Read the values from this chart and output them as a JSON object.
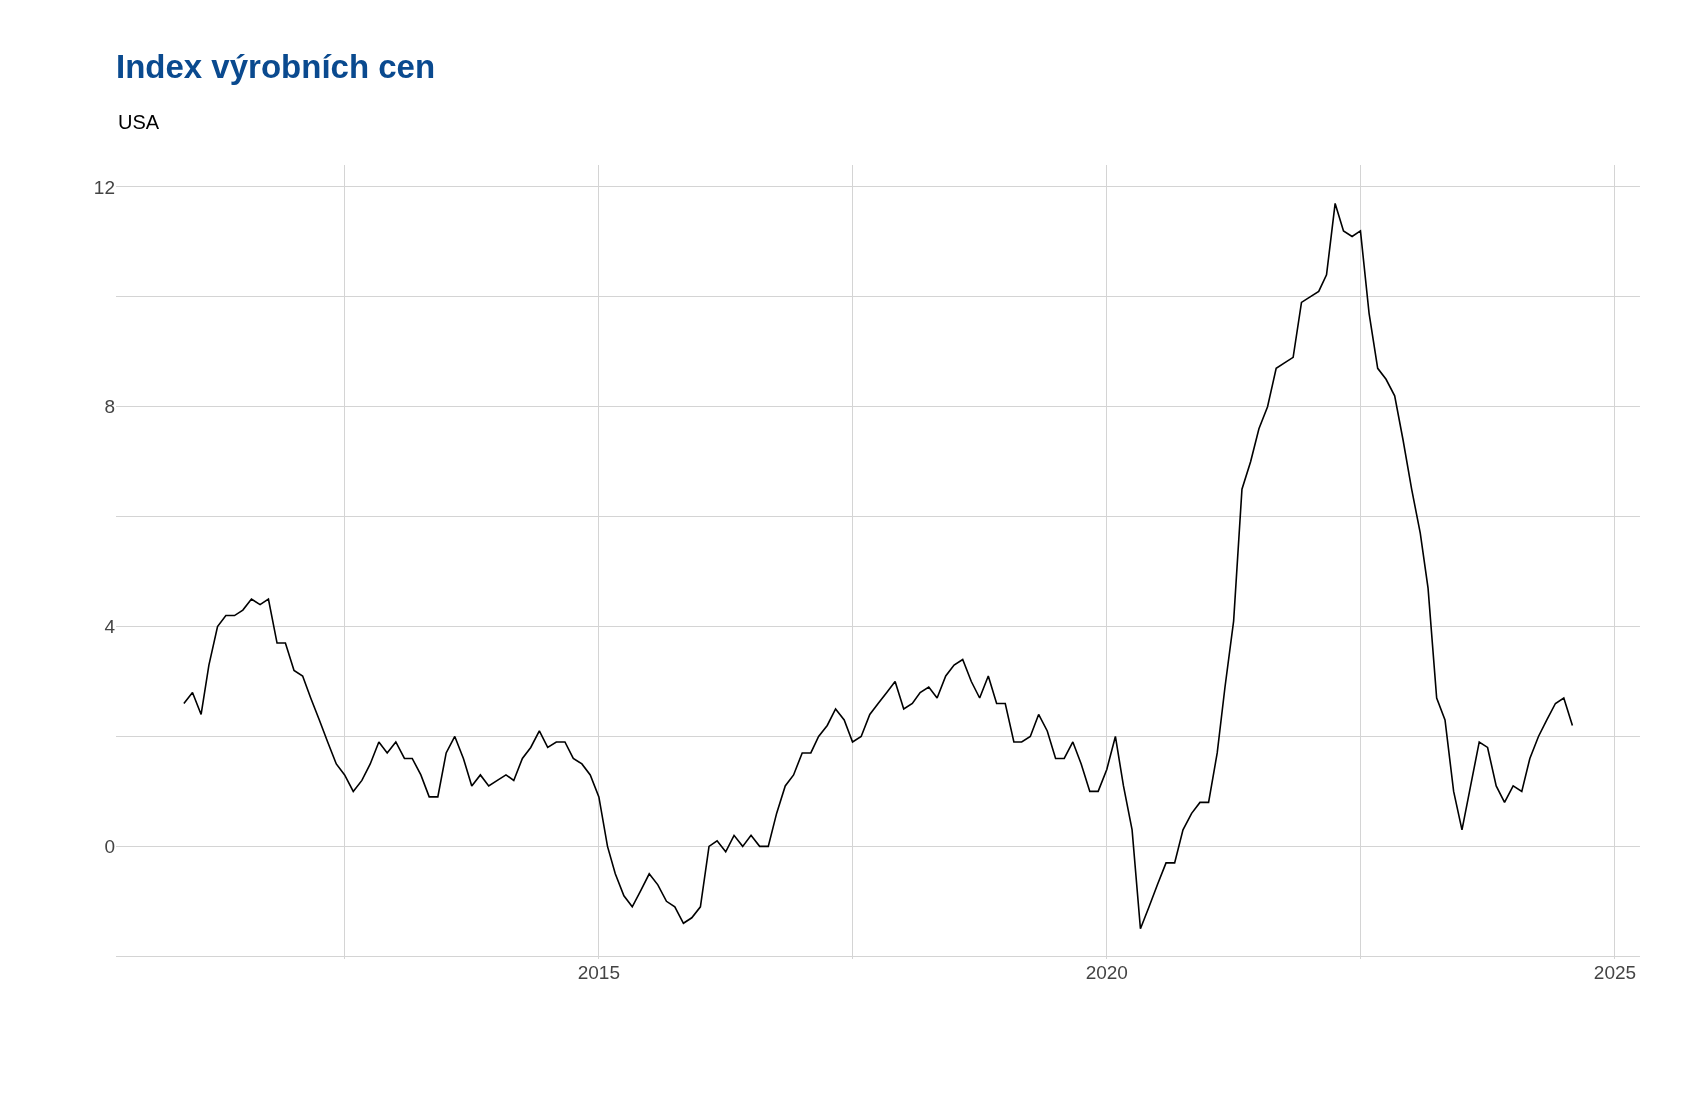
{
  "chart_data": {
    "type": "line",
    "title": "Index výrobních cen",
    "subtitle": "USA",
    "x": [
      "2010-12",
      "2011-01",
      "2011-02",
      "2011-03",
      "2011-04",
      "2011-05",
      "2011-06",
      "2011-07",
      "2011-08",
      "2011-09",
      "2011-10",
      "2011-11",
      "2011-12",
      "2012-01",
      "2012-02",
      "2012-03",
      "2012-04",
      "2012-05",
      "2012-06",
      "2012-07",
      "2012-08",
      "2012-09",
      "2012-10",
      "2012-11",
      "2012-12",
      "2013-01",
      "2013-02",
      "2013-03",
      "2013-04",
      "2013-05",
      "2013-06",
      "2013-07",
      "2013-08",
      "2013-09",
      "2013-10",
      "2013-11",
      "2013-12",
      "2014-01",
      "2014-02",
      "2014-03",
      "2014-04",
      "2014-05",
      "2014-06",
      "2014-07",
      "2014-08",
      "2014-09",
      "2014-10",
      "2014-11",
      "2014-12",
      "2015-01",
      "2015-02",
      "2015-03",
      "2015-04",
      "2015-05",
      "2015-06",
      "2015-07",
      "2015-08",
      "2015-09",
      "2015-10",
      "2015-11",
      "2015-12",
      "2016-01",
      "2016-02",
      "2016-03",
      "2016-04",
      "2016-05",
      "2016-06",
      "2016-07",
      "2016-08",
      "2016-09",
      "2016-10",
      "2016-11",
      "2016-12",
      "2017-01",
      "2017-02",
      "2017-03",
      "2017-04",
      "2017-05",
      "2017-06",
      "2017-07",
      "2017-08",
      "2017-09",
      "2017-10",
      "2017-11",
      "2017-12",
      "2018-01",
      "2018-02",
      "2018-03",
      "2018-04",
      "2018-05",
      "2018-06",
      "2018-07",
      "2018-08",
      "2018-09",
      "2018-10",
      "2018-11",
      "2018-12",
      "2019-01",
      "2019-02",
      "2019-03",
      "2019-04",
      "2019-05",
      "2019-06",
      "2019-07",
      "2019-08",
      "2019-09",
      "2019-10",
      "2019-11",
      "2019-12",
      "2020-01",
      "2020-02",
      "2020-03",
      "2020-04",
      "2020-05",
      "2020-06",
      "2020-07",
      "2020-08",
      "2020-09",
      "2020-10",
      "2020-11",
      "2020-12",
      "2021-01",
      "2021-02",
      "2021-03",
      "2021-04",
      "2021-05",
      "2021-06",
      "2021-07",
      "2021-08",
      "2021-09",
      "2021-10",
      "2021-11",
      "2021-12",
      "2022-01",
      "2022-02",
      "2022-03",
      "2022-04",
      "2022-05",
      "2022-06",
      "2022-07",
      "2022-08",
      "2022-09",
      "2022-10",
      "2022-11",
      "2022-12",
      "2023-01",
      "2023-02",
      "2023-03",
      "2023-04",
      "2023-05",
      "2023-06",
      "2023-07",
      "2023-08",
      "2023-09",
      "2023-10",
      "2023-11",
      "2023-12",
      "2024-01",
      "2024-02",
      "2024-03",
      "2024-04",
      "2024-05",
      "2024-06",
      "2024-07",
      "2024-08"
    ],
    "series": [
      {
        "color": "#000000",
        "values": [
          2.6,
          2.8,
          2.4,
          3.3,
          4.0,
          4.2,
          4.2,
          4.3,
          4.5,
          4.4,
          4.5,
          3.7,
          3.7,
          3.2,
          3.1,
          2.7,
          2.3,
          1.9,
          1.5,
          1.3,
          1.0,
          1.2,
          1.5,
          1.9,
          1.7,
          1.9,
          1.6,
          1.6,
          1.3,
          0.9,
          0.9,
          1.7,
          2.0,
          1.6,
          1.1,
          1.3,
          1.1,
          1.2,
          1.3,
          1.2,
          1.6,
          1.8,
          2.1,
          1.8,
          1.9,
          1.9,
          1.6,
          1.5,
          1.3,
          0.9,
          0.0,
          -0.5,
          -0.9,
          -1.1,
          -0.8,
          -0.5,
          -0.7,
          -1.0,
          -1.1,
          -1.4,
          -1.3,
          -1.1,
          0.0,
          0.1,
          -0.1,
          0.2,
          0.0,
          0.2,
          0.0,
          0.0,
          0.6,
          1.1,
          1.3,
          1.7,
          1.7,
          2.0,
          2.2,
          2.5,
          2.3,
          1.9,
          2.0,
          2.4,
          2.6,
          2.8,
          3.0,
          2.5,
          2.6,
          2.8,
          2.9,
          2.7,
          3.1,
          3.3,
          3.4,
          3.0,
          2.7,
          3.1,
          2.6,
          2.6,
          1.9,
          1.9,
          2.0,
          2.4,
          2.1,
          1.6,
          1.6,
          1.9,
          1.5,
          1.0,
          1.0,
          1.4,
          2.0,
          1.1,
          0.3,
          -1.5,
          -1.1,
          -0.7,
          -0.3,
          -0.3,
          0.3,
          0.6,
          0.8,
          0.8,
          1.7,
          2.9,
          4.1,
          6.5,
          7.0,
          7.6,
          8.0,
          8.7,
          8.8,
          8.9,
          9.9,
          10.0,
          10.1,
          10.4,
          11.7,
          11.2,
          11.1,
          11.2,
          9.7,
          8.7,
          8.5,
          8.2,
          7.4,
          6.5,
          5.7,
          4.7,
          2.7,
          2.3,
          1.0,
          0.3,
          1.1,
          1.9,
          1.8,
          1.1,
          0.8,
          1.1,
          1.0,
          1.6,
          2.0,
          2.3,
          2.6,
          2.7,
          2.2
        ]
      }
    ],
    "xlim": [
      "2010-04",
      "2025-04"
    ],
    "xticks": [
      {
        "value": "2012-07",
        "label": null
      },
      "2015",
      {
        "value": "2017-07",
        "label": null
      },
      "2020",
      {
        "value": "2022-07",
        "label": null
      },
      "2025"
    ],
    "ylim": [
      -2.05,
      12.4
    ],
    "yticks": [
      {
        "value": -2,
        "label": null
      },
      0,
      {
        "value": 2,
        "label": null
      },
      4,
      {
        "value": 6,
        "label": null
      },
      8,
      {
        "value": 10,
        "label": null
      },
      12
    ],
    "grid": true,
    "marker": "none",
    "line_style": "solid"
  }
}
